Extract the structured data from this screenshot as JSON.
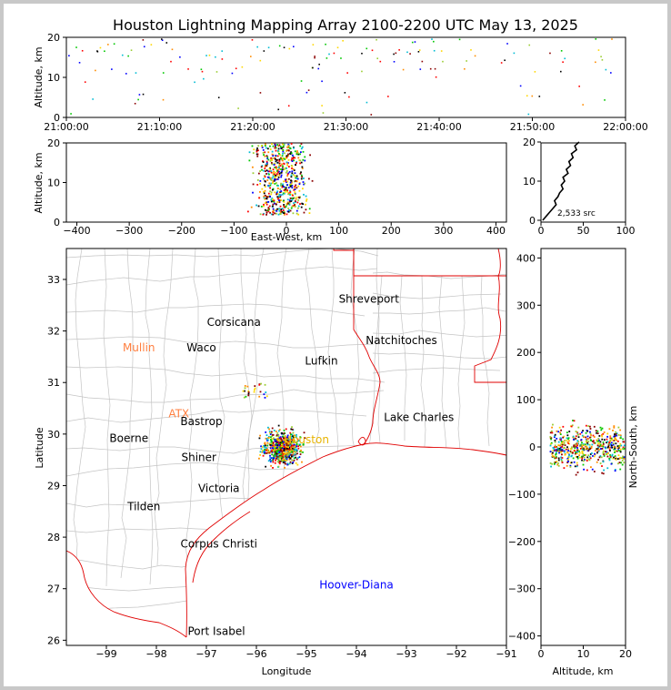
{
  "title": "Houston Lightning Mapping Array 2100-2200 UTC May 13, 2025",
  "source_count": "2,533 src",
  "colors": {
    "points": [
      "#0000ff",
      "#00bcd4",
      "#00c800",
      "#9acd32",
      "#ffd700",
      "#ff8c00",
      "#ff0000",
      "#8b0000",
      "#000000"
    ],
    "border": "#e00000",
    "county": "#c0c0c0",
    "city": "#000000",
    "city_orange": "#ff7f3f",
    "city_green": "#7cfc00",
    "city_gold": "#e8b400",
    "city_blue": "#0000ff"
  },
  "time_panel": {
    "ylabel": "Altitude, km",
    "x_ticks": [
      "21:00:00",
      "21:10:00",
      "21:20:00",
      "21:30:00",
      "21:40:00",
      "21:50:00",
      "22:00:00"
    ],
    "y_ticks": [
      "0",
      "10",
      "20"
    ]
  },
  "ew_panel": {
    "xlabel": "East-West, km",
    "ylabel": "Altitude, km",
    "x_ticks": [
      "−400",
      "−300",
      "−200",
      "−100",
      "0",
      "100",
      "200",
      "300",
      "400"
    ],
    "y_ticks": [
      "0",
      "10",
      "20"
    ]
  },
  "hist_panel": {
    "x_ticks": [
      "0",
      "50",
      "100"
    ],
    "y_ticks": [
      "0",
      "10",
      "20"
    ]
  },
  "map_panel": {
    "xlabel": "Longitude",
    "ylabel": "Latitude",
    "x_ticks": [
      "−99",
      "−98",
      "−97",
      "−96",
      "−95",
      "−94",
      "−93",
      "−92",
      "−91"
    ],
    "y_ticks": [
      "26",
      "27",
      "28",
      "29",
      "30",
      "31",
      "32",
      "33"
    ],
    "cities": [
      {
        "name": "Shreveport",
        "lon": -93.75,
        "lat": 32.55,
        "color": "city"
      },
      {
        "name": "Corsicana",
        "lon": -96.45,
        "lat": 32.1,
        "color": "city"
      },
      {
        "name": "Natchitoches",
        "lon": -93.1,
        "lat": 31.75,
        "color": "city"
      },
      {
        "name": "Mullin",
        "lon": -98.35,
        "lat": 31.6,
        "color": "city_orange"
      },
      {
        "name": "Waco",
        "lon": -97.1,
        "lat": 31.6,
        "color": "city"
      },
      {
        "name": "Lufkin",
        "lon": -94.7,
        "lat": 31.35,
        "color": "city"
      },
      {
        "name": "ATX",
        "lon": -97.55,
        "lat": 30.32,
        "color": "city_orange"
      },
      {
        "name": "Bastrop",
        "lon": -97.1,
        "lat": 30.17,
        "color": "city"
      },
      {
        "name": "Lake Charles",
        "lon": -92.75,
        "lat": 30.25,
        "color": "city"
      },
      {
        "name": "Boerne",
        "lon": -98.55,
        "lat": 29.85,
        "color": "city"
      },
      {
        "name": "Houston",
        "lon": -95.0,
        "lat": 29.82,
        "color": "city_gold"
      },
      {
        "name": "Shiner",
        "lon": -97.15,
        "lat": 29.48,
        "color": "city"
      },
      {
        "name": "Victoria",
        "lon": -96.75,
        "lat": 28.88,
        "color": "city"
      },
      {
        "name": "Tilden",
        "lon": -98.25,
        "lat": 28.52,
        "color": "city"
      },
      {
        "name": "Corpus Christi",
        "lon": -96.75,
        "lat": 27.8,
        "color": "city"
      },
      {
        "name": "Hoover-Diana",
        "lon": -94.0,
        "lat": 27.0,
        "color": "city_blue"
      },
      {
        "name": "Port Isabel",
        "lon": -96.8,
        "lat": 26.1,
        "color": "city"
      }
    ]
  },
  "ns_panel": {
    "xlabel": "Altitude, km",
    "ylabel": "North-South, km",
    "x_ticks": [
      "0",
      "10",
      "20"
    ],
    "y_ticks": [
      "−400",
      "−300",
      "−200",
      "−100",
      "0",
      "100",
      "200",
      "300",
      "400"
    ]
  },
  "chart_data": [
    {
      "type": "scatter",
      "panel": "time-height",
      "x_range": [
        "21:00:00",
        "22:00:00"
      ],
      "ylim": [
        0,
        20
      ],
      "ylabel": "Altitude, km",
      "description_values": "sparse sources spread over the whole hour, altitudes mostly 0-20 km"
    },
    {
      "type": "scatter",
      "panel": "east-west vs altitude",
      "xlim": [
        -420,
        420
      ],
      "ylim": [
        0,
        20
      ],
      "xlabel": "East-West, km",
      "ylabel": "Altitude, km",
      "cluster": {
        "x_center": -10,
        "x_spread": 45,
        "alt_range": [
          2,
          20
        ]
      }
    },
    {
      "type": "line",
      "panel": "altitude histogram",
      "xlim": [
        0,
        100
      ],
      "ylim": [
        0,
        20
      ],
      "profile": [
        [
          2,
          0
        ],
        [
          6,
          1
        ],
        [
          10,
          2
        ],
        [
          14,
          3
        ],
        [
          18,
          4
        ],
        [
          16,
          5
        ],
        [
          20,
          6
        ],
        [
          22,
          7
        ],
        [
          26,
          8
        ],
        [
          24,
          9
        ],
        [
          28,
          10
        ],
        [
          26,
          11
        ],
        [
          32,
          12
        ],
        [
          30,
          13
        ],
        [
          35,
          14
        ],
        [
          33,
          15
        ],
        [
          38,
          16
        ],
        [
          36,
          17
        ],
        [
          42,
          18
        ],
        [
          40,
          19
        ],
        [
          45,
          20
        ]
      ]
    },
    {
      "type": "scatter",
      "panel": "plan view map",
      "xlim": [
        -99.8,
        -91
      ],
      "ylim": [
        25.9,
        33.6
      ],
      "xlabel": "Longitude",
      "ylabel": "Latitude",
      "cluster": {
        "lon_center": -95.5,
        "lat_center": 29.75,
        "lon_spread": 0.35,
        "lat_spread": 0.3
      }
    },
    {
      "type": "scatter",
      "panel": "altitude vs north-south",
      "xlim": [
        0,
        20
      ],
      "ylim": [
        -420,
        420
      ],
      "xlabel": "Altitude, km",
      "ylabel": "North-South, km",
      "cluster": {
        "ns_center": 0,
        "ns_spread": 45,
        "alt_range": [
          2,
          20
        ]
      }
    }
  ]
}
